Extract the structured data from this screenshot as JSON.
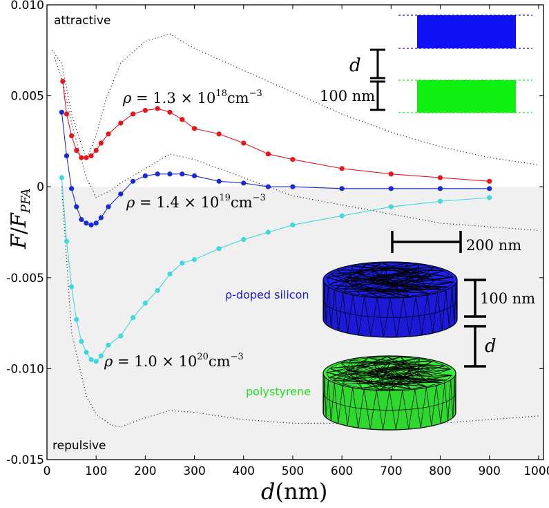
{
  "chart_data": {
    "type": "line",
    "xlabel": "d(nm)",
    "xlabel_parts": {
      "var": "d",
      "unit": "(nm)"
    },
    "ylabel": "F/F_PFA",
    "ylabel_parts": {
      "num": "F",
      "slash": "/",
      "den": "F",
      "sub": "PFA"
    },
    "xlim": [
      0,
      1010
    ],
    "ylim": [
      -0.015,
      0.01
    ],
    "x_ticks": [
      0,
      100,
      200,
      300,
      400,
      500,
      600,
      700,
      800,
      900,
      1000
    ],
    "y_ticks": [
      0.01,
      0.005,
      0,
      -0.005,
      -0.01,
      -0.015
    ],
    "y_tick_labels": [
      "0.010",
      "0.005",
      "0",
      "-0.005",
      "-0.010",
      "-0.015"
    ],
    "regions": {
      "attractive": "attractive",
      "repulsive": "repulsive"
    },
    "series": [
      {
        "name": "rho = 1.3 x 10^18 cm^-3",
        "label": {
          "rho": "ρ",
          "eq": " = 1.3 × 10",
          "exp": "18",
          "unit": "cm",
          "unit_exp": "−3"
        },
        "color": "#e8141a",
        "x": [
          32,
          40,
          50,
          60,
          70,
          80,
          90,
          100,
          110,
          125,
          150,
          175,
          200,
          225,
          250,
          275,
          300,
          350,
          400,
          450,
          500,
          600,
          700,
          800,
          900
        ],
        "y": [
          0.0058,
          0.004,
          0.0028,
          0.002,
          0.0016,
          0.0016,
          0.0017,
          0.002,
          0.0024,
          0.0029,
          0.0035,
          0.004,
          0.0042,
          0.0043,
          0.0041,
          0.0037,
          0.0032,
          0.0029,
          0.0024,
          0.0018,
          0.0015,
          0.001,
          0.0007,
          0.0005,
          0.0003
        ]
      },
      {
        "name": "rho = 1.4 x 10^19 cm^-3",
        "label": {
          "rho": "ρ",
          "eq": " = 1.4 × 10",
          "exp": "19",
          "unit": "cm",
          "unit_exp": "−3"
        },
        "color": "#1a2bd6",
        "x": [
          30,
          40,
          50,
          60,
          70,
          80,
          90,
          100,
          110,
          125,
          150,
          175,
          200,
          225,
          250,
          275,
          300,
          350,
          400,
          450,
          500,
          600,
          700,
          800,
          900
        ],
        "y": [
          0.0041,
          0.0017,
          -0.0001,
          -0.0011,
          -0.0018,
          -0.002,
          -0.0021,
          -0.002,
          -0.0017,
          -0.0011,
          -0.0004,
          0.0003,
          0.0006,
          0.0007,
          0.0007,
          0.0007,
          0.0006,
          0.0003,
          0.0002,
          0.0,
          0.0,
          -0.0001,
          -0.0001,
          -0.0001,
          -0.0001
        ]
      },
      {
        "name": "rho = 1.0 x 10^20 cm^-3",
        "label": {
          "rho": "ρ",
          "eq": " = 1.0 × 10",
          "exp": "20",
          "unit": "cm",
          "unit_exp": "−3"
        },
        "color": "#3fd8de",
        "x": [
          30,
          40,
          50,
          60,
          70,
          80,
          90,
          100,
          110,
          125,
          150,
          175,
          200,
          225,
          250,
          275,
          300,
          350,
          400,
          450,
          500,
          600,
          700,
          800,
          900
        ],
        "y": [
          0.0005,
          -0.003,
          -0.0055,
          -0.0073,
          -0.0085,
          -0.0091,
          -0.0095,
          -0.0096,
          -0.0093,
          -0.0087,
          -0.0082,
          -0.0072,
          -0.0064,
          -0.0057,
          -0.0048,
          -0.0042,
          -0.004,
          -0.0034,
          -0.0029,
          -0.0025,
          -0.0021,
          -0.0016,
          -0.0011,
          -0.0008,
          -0.0006
        ]
      }
    ],
    "envelopes": [
      {
        "name": "upper-bound",
        "x": [
          10,
          30,
          50,
          80,
          100,
          120,
          150,
          200,
          250,
          300,
          400,
          500,
          600,
          700,
          800,
          900,
          1000
        ],
        "y": [
          0.0075,
          0.0068,
          0.004,
          0.0015,
          0.0028,
          0.0048,
          0.0068,
          0.008,
          0.0084,
          0.0076,
          0.0064,
          0.0052,
          0.004,
          0.003,
          0.0022,
          0.0016,
          0.0012
        ]
      },
      {
        "name": "lower-bound",
        "x": [
          30,
          50,
          80,
          100,
          130,
          150,
          200,
          250,
          300,
          400,
          500,
          600,
          700,
          800,
          900,
          1000
        ],
        "y": [
          0.0,
          -0.008,
          -0.0115,
          -0.0125,
          -0.0131,
          -0.0132,
          -0.0127,
          -0.0123,
          -0.0124,
          -0.0128,
          -0.013,
          -0.013,
          -0.013,
          -0.013,
          -0.0128,
          -0.0126
        ]
      },
      {
        "name": "mid-bound",
        "x": [
          15,
          30,
          50,
          80,
          100,
          130,
          150,
          200,
          250,
          300,
          400,
          500,
          600,
          700,
          800,
          900,
          1000
        ],
        "y": [
          0.0071,
          0.006,
          0.0035,
          0.0005,
          -0.0006,
          -0.0002,
          0.0002,
          0.001,
          0.0018,
          0.0015,
          0.0005,
          -0.0005,
          -0.001,
          -0.0015,
          -0.002,
          -0.0022,
          -0.0024
        ]
      }
    ]
  },
  "inset_top": {
    "d_label": "d",
    "thickness_label": "100 nm",
    "upper_color": "#1010f5",
    "lower_color": "#10f010"
  },
  "inset_bottom": {
    "radius_label": "200 nm",
    "thickness_label": "100 nm",
    "d_label": "d",
    "upper_material": "ρ-doped silicon",
    "lower_material": "polystyrene",
    "upper_color": "#1a1ad8",
    "lower_color": "#2ed82e"
  }
}
